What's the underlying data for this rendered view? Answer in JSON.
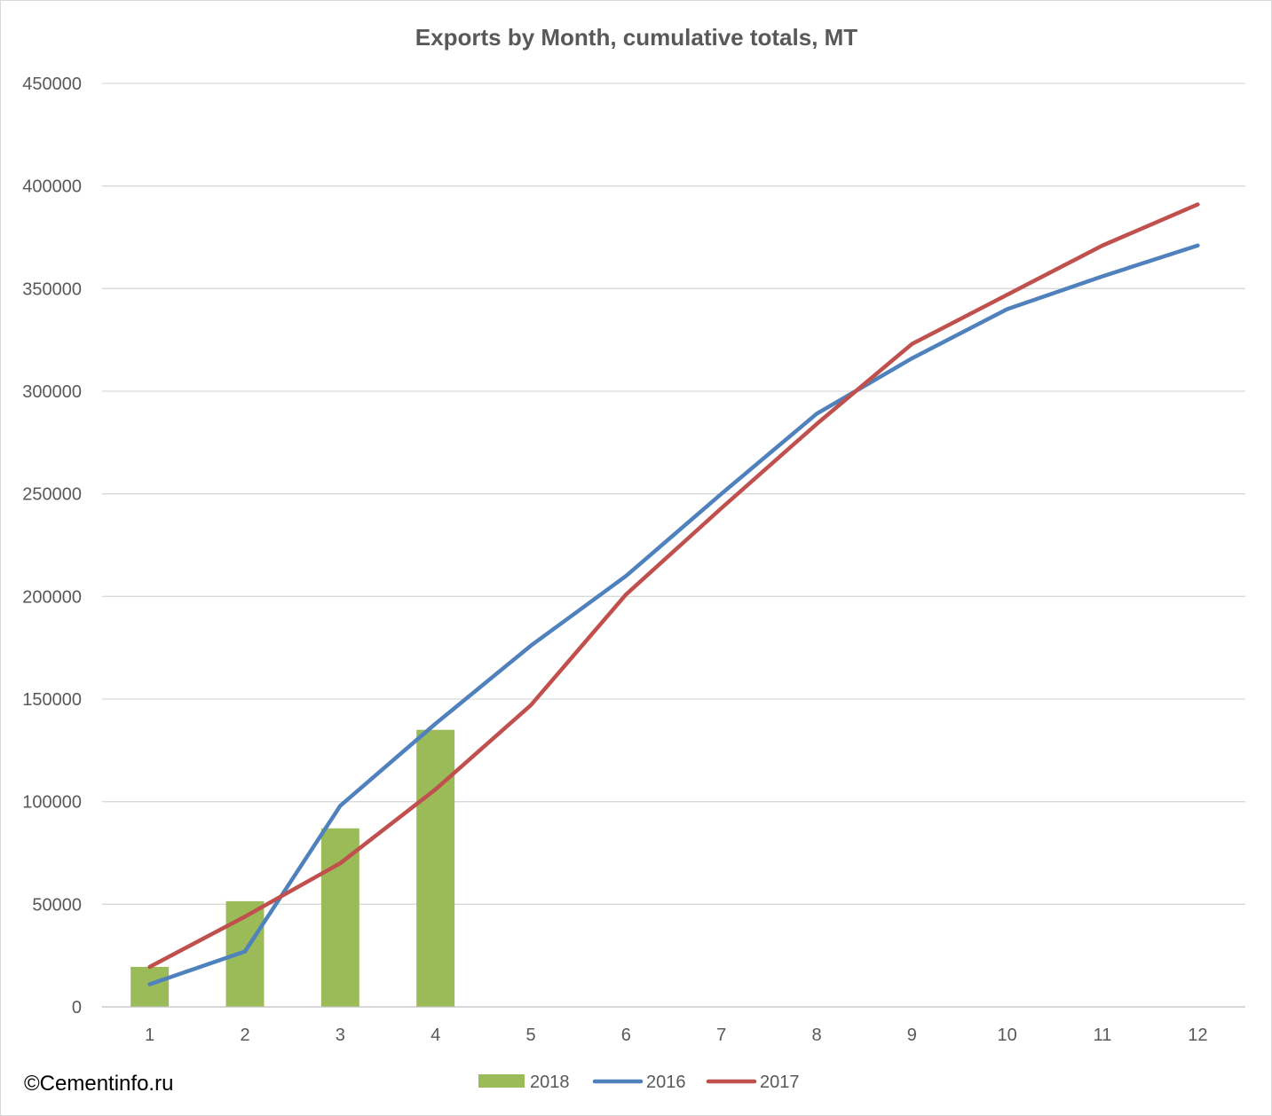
{
  "chart_data": {
    "type": "bar",
    "title": "Exports by Month, cumulative totals, MT",
    "xlabel": "",
    "ylabel": "",
    "categories": [
      "1",
      "2",
      "3",
      "4",
      "5",
      "6",
      "7",
      "8",
      "9",
      "10",
      "11",
      "12"
    ],
    "ylim": [
      0,
      450000
    ],
    "yticks": [
      0,
      50000,
      100000,
      150000,
      200000,
      250000,
      300000,
      350000,
      400000,
      450000
    ],
    "ytick_labels": [
      "0",
      "50000",
      "100000",
      "150000",
      "200000",
      "250000",
      "300000",
      "350000",
      "400000",
      "450000"
    ],
    "grid": true,
    "legend": "bottom",
    "series": [
      {
        "name": "2018",
        "type": "bar",
        "color": "#9bbb59",
        "values": [
          19500,
          51500,
          87000,
          135000,
          null,
          null,
          null,
          null,
          null,
          null,
          null,
          null
        ]
      },
      {
        "name": "2016",
        "type": "line",
        "color": "#4f81bd",
        "values": [
          11000,
          27000,
          98000,
          138000,
          176000,
          210000,
          250000,
          289000,
          316000,
          340000,
          356000,
          371000
        ]
      },
      {
        "name": "2017",
        "type": "line",
        "color": "#c0504d",
        "values": [
          19500,
          44000,
          70000,
          106000,
          147000,
          201000,
          243000,
          284000,
          323000,
          347000,
          371000,
          391000
        ]
      }
    ]
  },
  "credit": "©Cementinfo.ru"
}
